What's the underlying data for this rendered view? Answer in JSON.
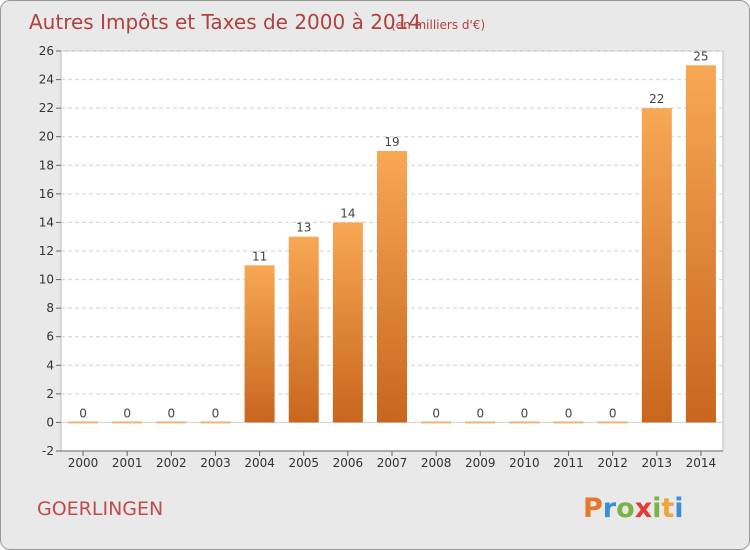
{
  "header": {
    "title": "Autres Impôts et Taxes de 2000 à 2014",
    "subtitle": "(en milliers d'€)"
  },
  "footer": {
    "commune": "GOERLINGEN",
    "brand_letters": [
      "P",
      "r",
      "o",
      "x",
      "i",
      "t",
      "i"
    ],
    "brand_colors": [
      "#e8762b",
      "#3b8fd6",
      "#7cb342",
      "#e53935",
      "#7cb342",
      "#f2a33a",
      "#3b8fd6"
    ]
  },
  "colors": {
    "bar_top": "#f8a854",
    "bar_bottom": "#c8661e",
    "zero_bar": "#f0b27a",
    "plot_bg": "#ffffff",
    "grid": "#d0d0d0",
    "axis": "#666666"
  },
  "chart_data": {
    "type": "bar",
    "categories": [
      "2000",
      "2001",
      "2002",
      "2003",
      "2004",
      "2005",
      "2006",
      "2007",
      "2008",
      "2009",
      "2010",
      "2011",
      "2012",
      "2013",
      "2014"
    ],
    "values": [
      0,
      0,
      0,
      0,
      11,
      13,
      14,
      19,
      0,
      0,
      0,
      0,
      0,
      22,
      25
    ],
    "data_labels": [
      "0",
      "0",
      "0",
      "0",
      "11",
      "13",
      "14",
      "19",
      "0",
      "0",
      "0",
      "0",
      "0",
      "22",
      "25"
    ],
    "title": "Autres Impôts et Taxes de 2000 à 2014",
    "xlabel": "",
    "ylabel": "",
    "ylim": [
      -2,
      26
    ],
    "yticks": [
      -2,
      0,
      2,
      4,
      6,
      8,
      10,
      12,
      14,
      16,
      18,
      20,
      22,
      24,
      26
    ],
    "grid": true,
    "legend": "none"
  }
}
